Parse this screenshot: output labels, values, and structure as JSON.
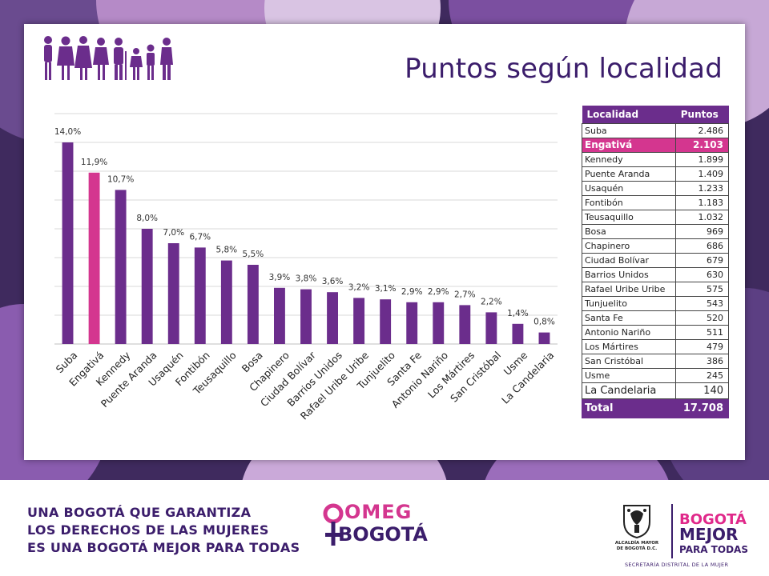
{
  "title": "Puntos según localidad",
  "colors": {
    "bar": "#6b2d8c",
    "bar_highlight": "#d4368f",
    "title": "#3b1d6b",
    "grid": "#d9d9d9"
  },
  "chart_data": {
    "type": "bar",
    "categories": [
      "Suba",
      "Engativá",
      "Kennedy",
      "Puente Aranda",
      "Usaquén",
      "Fontibón",
      "Teusaquillo",
      "Bosa",
      "Chapinero",
      "Ciudad Bolívar",
      "Barrios Unidos",
      "Rafael Uribe Uribe",
      "Tunjuelito",
      "Santa Fe",
      "Antonio Nariño",
      "Los Mártires",
      "San Cristóbal",
      "Usme",
      "La Candelaria"
    ],
    "values": [
      14.0,
      11.9,
      10.7,
      8.0,
      7.0,
      6.7,
      5.8,
      5.5,
      3.9,
      3.8,
      3.6,
      3.2,
      3.1,
      2.9,
      2.9,
      2.7,
      2.2,
      1.4,
      0.8
    ],
    "value_labels": [
      "14,0%",
      "11,9%",
      "10,7%",
      "8,0%",
      "7,0%",
      "6,7%",
      "5,8%",
      "5,5%",
      "3,9%",
      "3,8%",
      "3,6%",
      "3,2%",
      "3,1%",
      "2,9%",
      "2,9%",
      "2,7%",
      "2,2%",
      "1,4%",
      "0,8%"
    ],
    "highlight_index": 1,
    "ylim": [
      0,
      16
    ],
    "grid": true,
    "xlabel": "",
    "ylabel": ""
  },
  "table": {
    "headers": [
      "Localidad",
      "Puntos"
    ],
    "rows": [
      {
        "localidad": "Suba",
        "puntos": "2.486"
      },
      {
        "localidad": "Engativá",
        "puntos": "2.103"
      },
      {
        "localidad": "Kennedy",
        "puntos": "1.899"
      },
      {
        "localidad": "Puente Aranda",
        "puntos": "1.409"
      },
      {
        "localidad": "Usaquén",
        "puntos": "1.233"
      },
      {
        "localidad": "Fontibón",
        "puntos": "1.183"
      },
      {
        "localidad": "Teusaquillo",
        "puntos": "1.032"
      },
      {
        "localidad": "Bosa",
        "puntos": "969"
      },
      {
        "localidad": "Chapinero",
        "puntos": "686"
      },
      {
        "localidad": "Ciudad Bolívar",
        "puntos": "679"
      },
      {
        "localidad": "Barrios Unidos",
        "puntos": "630"
      },
      {
        "localidad": "Rafael Uribe Uribe",
        "puntos": "575"
      },
      {
        "localidad": "Tunjuelito",
        "puntos": "543"
      },
      {
        "localidad": "Santa Fe",
        "puntos": "520"
      },
      {
        "localidad": "Antonio Nariño",
        "puntos": "511"
      },
      {
        "localidad": "Los Mártires",
        "puntos": "479"
      },
      {
        "localidad": "San Cristóbal",
        "puntos": "386"
      },
      {
        "localidad": "Usme",
        "puntos": "245"
      },
      {
        "localidad": "La Candelaria",
        "puntos": "140"
      }
    ],
    "highlight_row": 1,
    "total_label": "Total",
    "total_value": "17.708"
  },
  "footer": {
    "slogan_lines": [
      "UNA BOGOTÁ QUE GARANTIZA",
      "LOS DERECHOS DE LAS MUJERES",
      "ES UNA BOGOTÁ MEJOR PARA TODAS"
    ],
    "omeg_top": "OMEG",
    "omeg_bottom": "BOGOTÁ",
    "alcaldia_line1": "ALCALDÍA MAYOR",
    "alcaldia_line2": "DE BOGOTÁ D.C.",
    "bogota_mejor_1": "BOGOTÁ",
    "bogota_mejor_2": "MEJOR",
    "bogota_mejor_3": "PARA TODAS",
    "secretaria": "SECRETARÍA DISTRITAL DE LA MUJER"
  }
}
